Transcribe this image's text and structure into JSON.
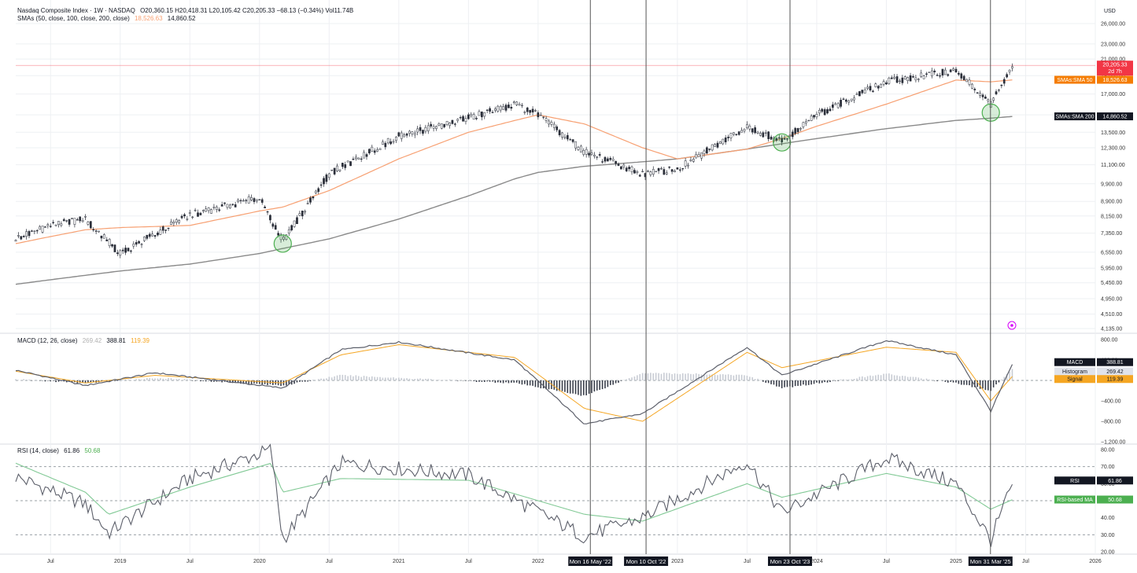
{
  "header": {
    "symbol_line": "Nasdaq Composite Index · 1W · NASDAQ",
    "ohlc": "O20,360.15  H20,418.31  L20,105.42  C20,205.33  −68.13 (−0.34%)  Vol11.74B",
    "sma_line_label": "SMAs (50, close, 100, close, 200, close)",
    "sma_line_v1": "18,526.63",
    "sma_line_v2": "14,860.52",
    "currency": "USD"
  },
  "price_panel": {
    "y_ticks": [
      "26,000.00",
      "23,000.00",
      "21,000.00",
      "19,000.00",
      "17,000.00",
      "15,000.00",
      "13,500.00",
      "12,300.00",
      "11,100.00",
      "9,900.00",
      "8,900.00",
      "8,150.00",
      "7,350.00",
      "6,550.00",
      "5,950.00",
      "5,450.00",
      "4,950.00",
      "4,510.00",
      "4,135.00"
    ],
    "last_price_badge": "20,205.33",
    "last_price_countdown": "2d 7h",
    "sma50_badge_label": "SMAs:SMA 50",
    "sma50_badge_value": "18,526.63",
    "sma200_badge_label": "SMAs:SMA 200",
    "sma200_badge_value": "14,860.52"
  },
  "macd_panel": {
    "label": "MACD (12, 26, close)",
    "v_hist": "269.42",
    "v_macd": "388.81",
    "v_signal": "119.39",
    "y_ticks": [
      "800.00",
      "400.00",
      "0.00",
      "−400.00",
      "−800.00",
      "−1,200.00"
    ],
    "badge_macd_label": "MACD",
    "badge_macd_value": "388.81",
    "badge_hist_label": "Histogram",
    "badge_hist_value": "269.42",
    "badge_signal_label": "Signal",
    "badge_signal_value": "119.39"
  },
  "rsi_panel": {
    "label": "RSI (14, close)",
    "v_rsi": "61.86",
    "v_ma": "50.68",
    "y_ticks": [
      "80.00",
      "70.00",
      "60.00",
      "50.00",
      "40.00",
      "30.00",
      "20.00"
    ],
    "badge_rsi_label": "RSI",
    "badge_rsi_value": "61.86",
    "badge_ma_label": "RSI-based MA",
    "badge_ma_value": "50.68"
  },
  "time_axis": {
    "ticks": [
      "Jul",
      "2019",
      "Jul",
      "2020",
      "Jul",
      "2021",
      "Jul",
      "2022",
      "2023",
      "Jul",
      "2024",
      "Jul",
      "2025",
      "Jul",
      "2026"
    ]
  },
  "vertical_markers": [
    {
      "label": "Mon 16 May '22"
    },
    {
      "label": "Mon 10 Oct '22"
    },
    {
      "label": "Mon 23 Oct '23"
    },
    {
      "label": "Mon 31 Mar '25"
    }
  ],
  "colors": {
    "sma50": "#f7a072",
    "sma200": "#8a8a8a",
    "candle": "#2a2e39",
    "macd_line": "#5d606b",
    "signal_line": "#f5a623",
    "rsi_line": "#5d606b",
    "rsi_ma": "#81c995",
    "circle": "#4caf50",
    "last_price": "#f23645",
    "grid": "#eef0f3",
    "marker_line": "#555555"
  },
  "chart_data": [
    {
      "type": "line",
      "title": "Nasdaq Composite Index · 1W · NASDAQ",
      "y_scale": "log",
      "ylim": [
        4135,
        26000
      ],
      "x": [
        "2018-04",
        "2018-07",
        "2018-10",
        "2019-01",
        "2019-07",
        "2020-01",
        "2020-03",
        "2020-07",
        "2021-01",
        "2021-07",
        "2021-11",
        "2022-01",
        "2022-05",
        "2022-10",
        "2023-01",
        "2023-07",
        "2023-10",
        "2024-01",
        "2024-07",
        "2025-01",
        "2025-04",
        "2025-06"
      ],
      "series": [
        {
          "name": "close",
          "values": [
            7100,
            7700,
            8000,
            6500,
            8200,
            9100,
            7000,
            10500,
            13200,
            14700,
            16000,
            15000,
            12000,
            10500,
            10800,
            14000,
            12800,
            15000,
            18300,
            19600,
            16000,
            20205
          ]
        },
        {
          "name": "SMA 50",
          "values": [
            6900,
            7200,
            7500,
            7600,
            7700,
            8400,
            8600,
            9500,
            11500,
            13500,
            14500,
            15000,
            14200,
            12300,
            11500,
            12200,
            13000,
            14000,
            16000,
            18500,
            18300,
            18527
          ]
        },
        {
          "name": "SMA 200",
          "values": [
            5400,
            5550,
            5700,
            5850,
            6100,
            6500,
            6700,
            7100,
            8000,
            9200,
            10200,
            10600,
            11000,
            11300,
            11500,
            12200,
            12600,
            13000,
            13800,
            14500,
            14700,
            14861
          ]
        }
      ]
    },
    {
      "type": "line",
      "title": "MACD (12, 26, close)",
      "ylim": [
        -1200,
        800
      ],
      "x": [
        "2018-04",
        "2018-10",
        "2019-04",
        "2020-03",
        "2020-08",
        "2021-01",
        "2021-11",
        "2022-05",
        "2022-10",
        "2023-07",
        "2023-10",
        "2024-07",
        "2025-01",
        "2025-04",
        "2025-06"
      ],
      "series": [
        {
          "name": "MACD",
          "values": [
            200,
            -100,
            150,
            -150,
            600,
            750,
            400,
            -850,
            -650,
            650,
            100,
            780,
            500,
            -600,
            389
          ]
        },
        {
          "name": "Signal",
          "values": [
            180,
            -50,
            100,
            -50,
            500,
            700,
            450,
            -550,
            -800,
            550,
            250,
            650,
            550,
            -400,
            119
          ]
        },
        {
          "name": "Histogram",
          "values": [
            20,
            -50,
            50,
            -100,
            100,
            50,
            -50,
            -300,
            150,
            100,
            -150,
            130,
            -50,
            -200,
            269
          ]
        }
      ]
    },
    {
      "type": "line",
      "title": "RSI (14, close)",
      "ylim": [
        20,
        80
      ],
      "x": [
        "2018-04",
        "2018-10",
        "2018-12",
        "2019-07",
        "2020-02",
        "2020-03",
        "2020-08",
        "2021-07",
        "2022-05",
        "2022-10",
        "2023-07",
        "2023-10",
        "2024-07",
        "2025-01",
        "2025-04",
        "2025-06"
      ],
      "series": [
        {
          "name": "RSI",
          "values": [
            64,
            48,
            31,
            63,
            80,
            27,
            72,
            65,
            29,
            40,
            73,
            43,
            75,
            60,
            27,
            62
          ]
        },
        {
          "name": "RSI-based MA",
          "values": [
            72,
            55,
            42,
            58,
            72,
            55,
            63,
            62,
            42,
            38,
            60,
            52,
            66,
            58,
            45,
            51
          ]
        }
      ]
    }
  ]
}
